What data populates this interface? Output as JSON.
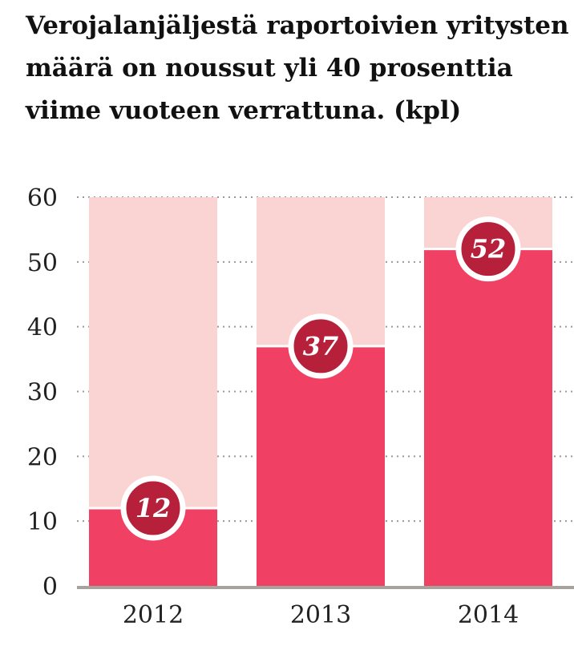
{
  "chart_data": {
    "type": "bar",
    "title": "Verojalanjäljestä raportoivien yritysten määrä on noussut yli 40 prosenttia viime vuoteen verrattuna. (kpl)",
    "categories": [
      "2012",
      "2013",
      "2014"
    ],
    "values": [
      12,
      37,
      52
    ],
    "data_labels": [
      "12",
      "37",
      "52"
    ],
    "yticks": [
      "0",
      "10",
      "20",
      "30",
      "40",
      "50",
      "60"
    ],
    "ylim": [
      0,
      60
    ],
    "grid": true,
    "colors": {
      "bar": "#f04063",
      "background_bar": "#fad4d2",
      "badge": "#b7203b",
      "badge_border": "#ffffff",
      "grid": "#999999",
      "axis": "#a8a29c"
    }
  }
}
